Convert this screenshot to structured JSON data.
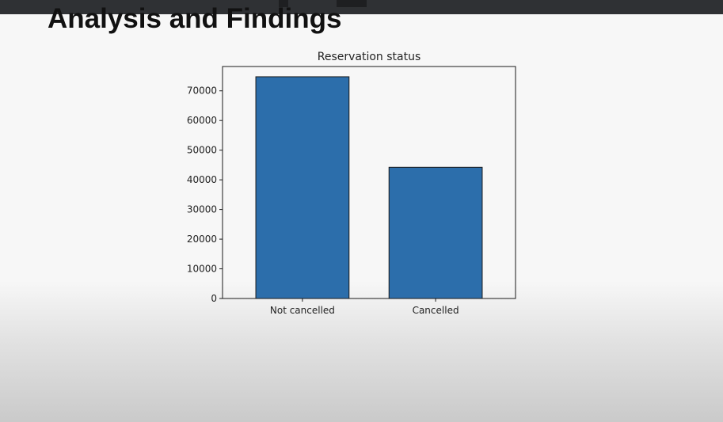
{
  "slide": {
    "title": "Analysis and Findings"
  },
  "colors": {
    "bar_fill": "#2c6eab",
    "bar_edge": "#1a1a1a"
  },
  "chart_data": {
    "type": "bar",
    "title": "Reservation status",
    "categories": [
      "Not cancelled",
      "Cancelled"
    ],
    "values": [
      74745,
      44224
    ],
    "xlabel": "",
    "ylabel": "",
    "ylim": [
      0,
      78200
    ],
    "yticks": [
      0,
      10000,
      20000,
      30000,
      40000,
      50000,
      60000,
      70000
    ],
    "grid": false,
    "legend": false
  }
}
